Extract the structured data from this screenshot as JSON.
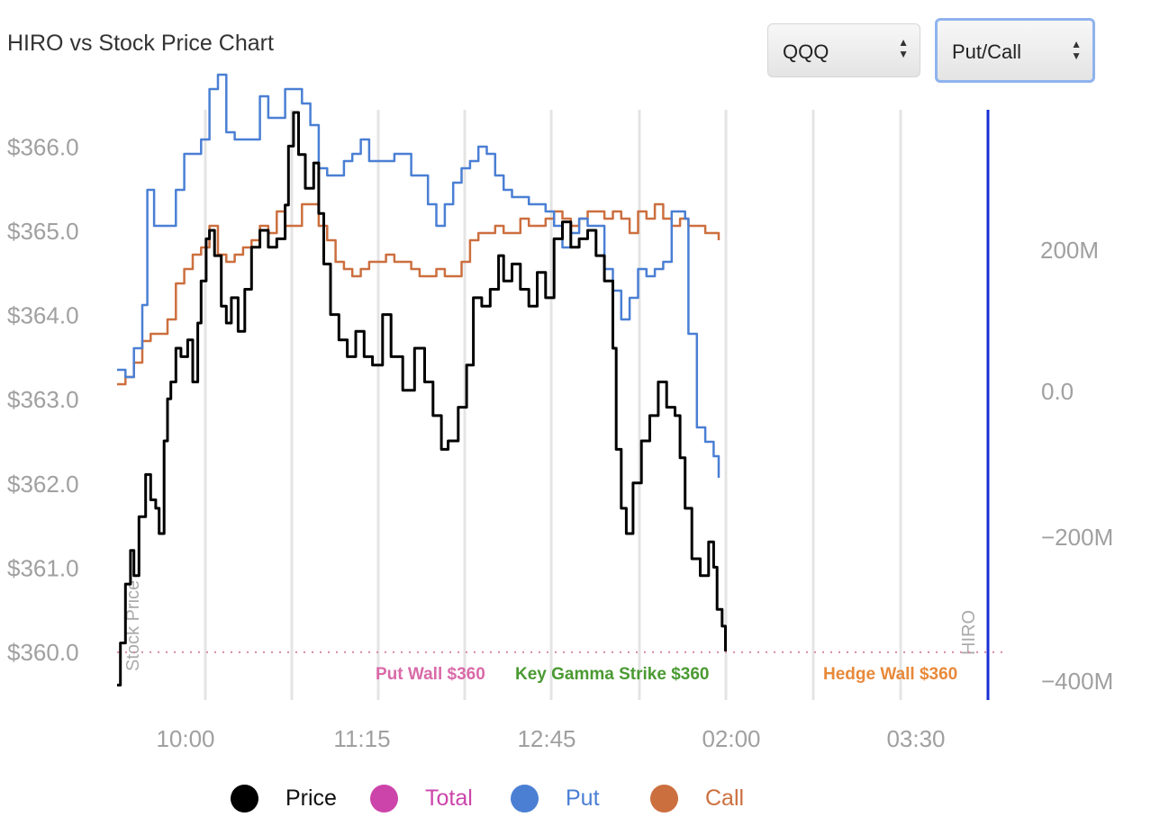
{
  "title": "HIRO vs Stock Price Chart",
  "controls": {
    "ticker": {
      "value": "QQQ"
    },
    "mode": {
      "value": "Put/Call"
    }
  },
  "colors": {
    "price": "#000000",
    "total": "#cc44aa",
    "put": "#4a7fd4",
    "call": "#cc6f3f",
    "put_wall": "#d96aa8",
    "gamma": "#4a9a32",
    "hedge": "#e8893a",
    "now_line": "#1a2fd6"
  },
  "chart_data": {
    "type": "line",
    "title": "HIRO vs Stock Price Chart",
    "x_ticks": [
      "10:00",
      "11:15",
      "12:45",
      "02:00",
      "03:30"
    ],
    "left_axis": {
      "label": "Stock Price",
      "ticks": [
        "$366.0",
        "$365.0",
        "$364.0",
        "$363.0",
        "$362.0",
        "$361.0",
        "$360.0"
      ],
      "range": [
        359.5,
        366.5
      ]
    },
    "right_axis": {
      "label": "HIRO",
      "ticks": [
        "200M",
        "0.0",
        "−200M",
        "−400M"
      ],
      "range": [
        -400,
        440
      ]
    },
    "x_range": [
      9.5,
      16.0
    ],
    "series": [
      {
        "name": "Price",
        "axis": "left",
        "points": [
          [
            9.5,
            359.6
          ],
          [
            9.52,
            360.1
          ],
          [
            9.55,
            360.8
          ],
          [
            9.58,
            361.2
          ],
          [
            9.6,
            360.9
          ],
          [
            9.63,
            361.6
          ],
          [
            9.67,
            362.1
          ],
          [
            9.7,
            361.8
          ],
          [
            9.73,
            361.7
          ],
          [
            9.75,
            361.4
          ],
          [
            9.78,
            362.5
          ],
          [
            9.8,
            363.0
          ],
          [
            9.82,
            363.2
          ],
          [
            9.85,
            363.6
          ],
          [
            9.88,
            363.5
          ],
          [
            9.92,
            363.7
          ],
          [
            9.95,
            363.2
          ],
          [
            9.98,
            363.9
          ],
          [
            10.0,
            364.4
          ],
          [
            10.03,
            364.9
          ],
          [
            10.05,
            365.0
          ],
          [
            10.08,
            364.7
          ],
          [
            10.12,
            364.1
          ],
          [
            10.15,
            363.9
          ],
          [
            10.18,
            364.2
          ],
          [
            10.22,
            363.8
          ],
          [
            10.26,
            364.3
          ],
          [
            10.3,
            364.8
          ],
          [
            10.35,
            365.0
          ],
          [
            10.4,
            364.8
          ],
          [
            10.45,
            364.9
          ],
          [
            10.5,
            365.3
          ],
          [
            10.52,
            366.0
          ],
          [
            10.55,
            366.4
          ],
          [
            10.58,
            365.9
          ],
          [
            10.62,
            365.5
          ],
          [
            10.67,
            365.8
          ],
          [
            10.7,
            365.2
          ],
          [
            10.73,
            364.6
          ],
          [
            10.77,
            364.0
          ],
          [
            10.82,
            363.7
          ],
          [
            10.87,
            363.5
          ],
          [
            10.92,
            363.8
          ],
          [
            10.97,
            363.5
          ],
          [
            11.02,
            363.4
          ],
          [
            11.08,
            364.0
          ],
          [
            11.13,
            363.5
          ],
          [
            11.2,
            363.1
          ],
          [
            11.27,
            363.6
          ],
          [
            11.33,
            363.2
          ],
          [
            11.38,
            362.8
          ],
          [
            11.43,
            362.4
          ],
          [
            11.47,
            362.5
          ],
          [
            11.53,
            362.9
          ],
          [
            11.58,
            363.4
          ],
          [
            11.62,
            364.2
          ],
          [
            11.67,
            364.1
          ],
          [
            11.72,
            364.3
          ],
          [
            11.77,
            364.7
          ],
          [
            11.8,
            364.4
          ],
          [
            11.85,
            364.6
          ],
          [
            11.9,
            364.3
          ],
          [
            11.95,
            364.1
          ],
          [
            12.0,
            364.5
          ],
          [
            12.05,
            364.2
          ],
          [
            12.1,
            364.9
          ],
          [
            12.15,
            365.1
          ],
          [
            12.2,
            364.8
          ],
          [
            12.25,
            364.9
          ],
          [
            12.3,
            365.0
          ],
          [
            12.35,
            364.7
          ],
          [
            12.4,
            364.4
          ],
          [
            12.45,
            363.6
          ],
          [
            12.47,
            362.4
          ],
          [
            12.5,
            361.7
          ],
          [
            12.53,
            361.4
          ],
          [
            12.57,
            362.0
          ],
          [
            12.62,
            362.5
          ],
          [
            12.67,
            362.8
          ],
          [
            12.72,
            363.2
          ],
          [
            12.77,
            362.9
          ],
          [
            12.82,
            362.8
          ],
          [
            12.85,
            362.3
          ],
          [
            12.88,
            361.7
          ],
          [
            12.92,
            361.1
          ],
          [
            12.97,
            360.9
          ],
          [
            13.02,
            361.3
          ],
          [
            13.05,
            361.0
          ],
          [
            13.07,
            360.5
          ],
          [
            13.1,
            360.3
          ],
          [
            13.12,
            360.0
          ]
        ]
      },
      {
        "name": "Put",
        "axis": "right",
        "points": [
          [
            9.5,
            30
          ],
          [
            9.55,
            20
          ],
          [
            9.6,
            60
          ],
          [
            9.65,
            120
          ],
          [
            9.68,
            280
          ],
          [
            9.72,
            230
          ],
          [
            9.78,
            230
          ],
          [
            9.85,
            280
          ],
          [
            9.9,
            330
          ],
          [
            9.95,
            330
          ],
          [
            10.0,
            350
          ],
          [
            10.05,
            420
          ],
          [
            10.1,
            440
          ],
          [
            10.15,
            360
          ],
          [
            10.2,
            350
          ],
          [
            10.25,
            350
          ],
          [
            10.3,
            350
          ],
          [
            10.35,
            410
          ],
          [
            10.4,
            380
          ],
          [
            10.45,
            380
          ],
          [
            10.5,
            420
          ],
          [
            10.55,
            420
          ],
          [
            10.6,
            400
          ],
          [
            10.65,
            370
          ],
          [
            10.7,
            310
          ],
          [
            10.75,
            300
          ],
          [
            10.8,
            300
          ],
          [
            10.85,
            320
          ],
          [
            10.9,
            330
          ],
          [
            10.95,
            350
          ],
          [
            11.0,
            320
          ],
          [
            11.05,
            320
          ],
          [
            11.1,
            320
          ],
          [
            11.15,
            330
          ],
          [
            11.2,
            330
          ],
          [
            11.25,
            300
          ],
          [
            11.3,
            300
          ],
          [
            11.35,
            260
          ],
          [
            11.4,
            230
          ],
          [
            11.45,
            260
          ],
          [
            11.5,
            290
          ],
          [
            11.55,
            310
          ],
          [
            11.6,
            320
          ],
          [
            11.65,
            340
          ],
          [
            11.7,
            330
          ],
          [
            11.75,
            300
          ],
          [
            11.8,
            280
          ],
          [
            11.85,
            270
          ],
          [
            11.9,
            270
          ],
          [
            11.95,
            260
          ],
          [
            12.0,
            260
          ],
          [
            12.05,
            250
          ],
          [
            12.1,
            230
          ],
          [
            12.15,
            200
          ],
          [
            12.2,
            220
          ],
          [
            12.25,
            240
          ],
          [
            12.3,
            230
          ],
          [
            12.35,
            230
          ],
          [
            12.4,
            170
          ],
          [
            12.45,
            140
          ],
          [
            12.5,
            100
          ],
          [
            12.55,
            130
          ],
          [
            12.6,
            170
          ],
          [
            12.65,
            160
          ],
          [
            12.7,
            170
          ],
          [
            12.75,
            180
          ],
          [
            12.8,
            250
          ],
          [
            12.85,
            250
          ],
          [
            12.88,
            240
          ],
          [
            12.9,
            80
          ],
          [
            12.95,
            -50
          ],
          [
            13.0,
            -70
          ],
          [
            13.05,
            -90
          ],
          [
            13.08,
            -120
          ]
        ]
      },
      {
        "name": "Call",
        "axis": "right",
        "points": [
          [
            9.5,
            10
          ],
          [
            9.55,
            20
          ],
          [
            9.6,
            40
          ],
          [
            9.65,
            70
          ],
          [
            9.7,
            80
          ],
          [
            9.75,
            80
          ],
          [
            9.8,
            100
          ],
          [
            9.85,
            150
          ],
          [
            9.9,
            170
          ],
          [
            9.95,
            190
          ],
          [
            10.0,
            200
          ],
          [
            10.05,
            230
          ],
          [
            10.1,
            190
          ],
          [
            10.15,
            180
          ],
          [
            10.2,
            190
          ],
          [
            10.25,
            200
          ],
          [
            10.3,
            210
          ],
          [
            10.35,
            230
          ],
          [
            10.4,
            220
          ],
          [
            10.45,
            250
          ],
          [
            10.5,
            230
          ],
          [
            10.55,
            230
          ],
          [
            10.6,
            260
          ],
          [
            10.65,
            260
          ],
          [
            10.7,
            230
          ],
          [
            10.75,
            210
          ],
          [
            10.8,
            180
          ],
          [
            10.85,
            170
          ],
          [
            10.9,
            160
          ],
          [
            10.95,
            170
          ],
          [
            11.0,
            180
          ],
          [
            11.05,
            180
          ],
          [
            11.1,
            190
          ],
          [
            11.15,
            180
          ],
          [
            11.2,
            180
          ],
          [
            11.25,
            170
          ],
          [
            11.3,
            160
          ],
          [
            11.35,
            160
          ],
          [
            11.4,
            170
          ],
          [
            11.45,
            160
          ],
          [
            11.5,
            160
          ],
          [
            11.55,
            180
          ],
          [
            11.6,
            210
          ],
          [
            11.65,
            220
          ],
          [
            11.7,
            220
          ],
          [
            11.75,
            230
          ],
          [
            11.8,
            220
          ],
          [
            11.85,
            220
          ],
          [
            11.9,
            240
          ],
          [
            11.95,
            230
          ],
          [
            12.0,
            230
          ],
          [
            12.05,
            240
          ],
          [
            12.1,
            250
          ],
          [
            12.15,
            240
          ],
          [
            12.2,
            230
          ],
          [
            12.25,
            240
          ],
          [
            12.3,
            250
          ],
          [
            12.35,
            250
          ],
          [
            12.4,
            240
          ],
          [
            12.45,
            250
          ],
          [
            12.5,
            240
          ],
          [
            12.55,
            220
          ],
          [
            12.6,
            250
          ],
          [
            12.65,
            240
          ],
          [
            12.7,
            260
          ],
          [
            12.75,
            240
          ],
          [
            12.8,
            230
          ],
          [
            12.85,
            240
          ],
          [
            12.9,
            230
          ],
          [
            12.95,
            230
          ],
          [
            13.0,
            220
          ],
          [
            13.05,
            220
          ],
          [
            13.08,
            210
          ]
        ]
      }
    ],
    "reference_line": {
      "axis": "left",
      "y": 359.99
    },
    "annotations": [
      {
        "text": "Put Wall $360"
      },
      {
        "text": "Key Gamma Strike $360"
      },
      {
        "text": "Hedge Wall $360"
      }
    ],
    "legend": [
      "Price",
      "Total",
      "Put",
      "Call"
    ]
  }
}
